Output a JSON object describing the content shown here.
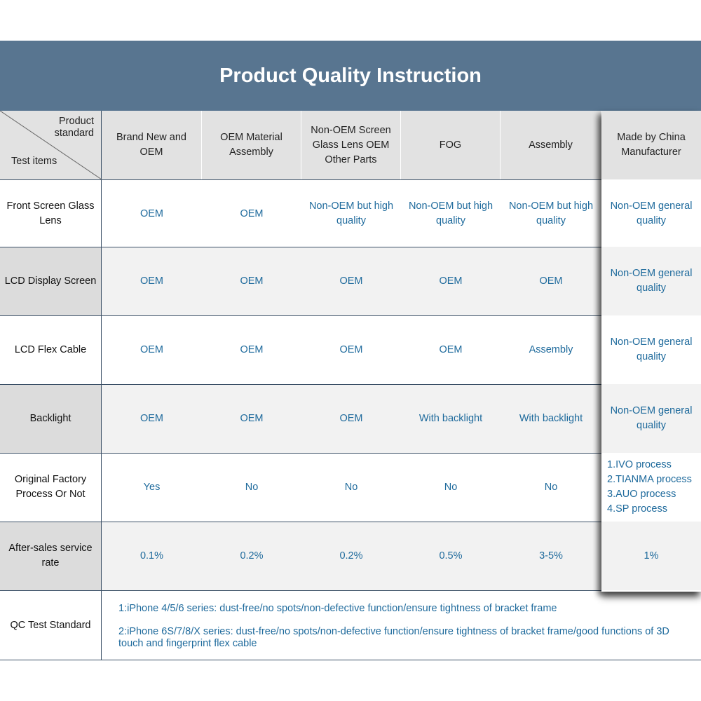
{
  "title": "Product Quality Instruction",
  "corner": {
    "top_line1": "Product",
    "top_line2": "standard",
    "bottom": "Test items"
  },
  "columns": [
    "Brand New and OEM",
    "OEM Material Assembly",
    "Non-OEM Screen Glass Lens OEM Other Parts",
    "FOG",
    "Assembly",
    "Made by China Manufacturer"
  ],
  "rows": [
    {
      "label": "Front Screen Glass Lens",
      "values": [
        "OEM",
        "OEM",
        "Non-OEM but high quality",
        "Non-OEM but high quality",
        "Non-OEM but high quality",
        "Non-OEM general quality"
      ]
    },
    {
      "label": "LCD Display Screen",
      "values": [
        "OEM",
        "OEM",
        "OEM",
        "OEM",
        "OEM",
        "Non-OEM general quality"
      ]
    },
    {
      "label": "LCD Flex Cable",
      "values": [
        "OEM",
        "OEM",
        "OEM",
        "OEM",
        "Assembly",
        "Non-OEM general quality"
      ]
    },
    {
      "label": "Backlight",
      "values": [
        "OEM",
        "OEM",
        "OEM",
        "With backlight",
        "With backlight",
        "Non-OEM general quality"
      ]
    },
    {
      "label": "Original Factory Process Or Not",
      "values": [
        "Yes",
        "No",
        "No",
        "No",
        "No"
      ],
      "china_processes": [
        "1.IVO process",
        "2.TIANMA process",
        "3.AUO process",
        "4.SP process"
      ]
    },
    {
      "label": "After-sales service rate",
      "values": [
        "0.1%",
        "0.2%",
        "0.2%",
        "0.5%",
        "3-5%",
        "1%"
      ]
    }
  ],
  "qc": {
    "label": "QC Test Standard",
    "line1": "1:iPhone 4/5/6 series: dust-free/no spots/non-defective function/ensure tightness of bracket frame",
    "line2": "2:iPhone 6S/7/8/X series: dust-free/no spots/non-defective function/ensure tightness of bracket frame/good functions of 3D touch and fingerprint flex cable"
  },
  "colors": {
    "header_bar": "#587590",
    "value_text": "#1e6a9c",
    "border": "#3a4f66"
  }
}
